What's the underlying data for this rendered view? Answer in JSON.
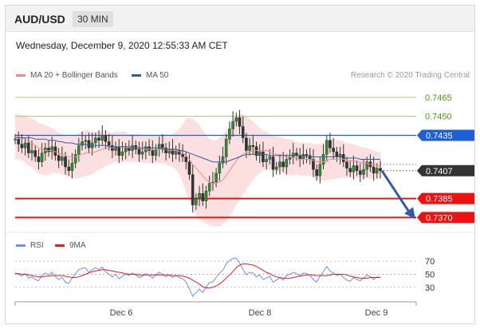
{
  "header": {
    "symbol": "AUD/USD",
    "timeframe": "30 MIN"
  },
  "datetime": "Wednesday, December 9, 2020 12:55:33 AM CET",
  "credit": "Research © 2020 Trading Central",
  "legend": {
    "main": [
      {
        "label": "MA 20 + Bollinger Bands",
        "color": "#f08a8a"
      },
      {
        "label": "MA 50",
        "color": "#2e5da8"
      }
    ],
    "rsi": [
      {
        "label": "RSI",
        "color": "#6f8fe0"
      },
      {
        "label": "9MA",
        "color": "#e02020"
      }
    ]
  },
  "chart_data": [
    {
      "type": "line",
      "price_ylim": [
        0.7362,
        0.7477
      ],
      "x_ticks": [
        "Dec 6",
        "Dec 8",
        "Dec 9"
      ],
      "levels": [
        {
          "value": 0.7465,
          "label": "0.7465",
          "kind": "resistance",
          "color": "#9ccf6a",
          "text_color": "#4a9a1a"
        },
        {
          "value": 0.745,
          "label": "0.7450",
          "kind": "resistance",
          "color": "#9ccf6a",
          "text_color": "#4a9a1a"
        },
        {
          "value": 0.7435,
          "label": "0.7435",
          "kind": "pivot",
          "color": "#1f5fd6",
          "text_color": "#ffffff"
        },
        {
          "value": 0.7407,
          "label": "0.7407",
          "kind": "last",
          "color": "#333333",
          "text_color": "#ffffff"
        },
        {
          "value": 0.7385,
          "label": "0.7385",
          "kind": "support",
          "color": "#ee1111",
          "text_color": "#ffffff"
        },
        {
          "value": 0.737,
          "label": "0.7370",
          "kind": "support",
          "color": "#ee1111",
          "text_color": "#ffffff"
        }
      ],
      "price_series": [
        0.7432,
        0.7428,
        0.7425,
        0.7429,
        0.7421,
        0.7423,
        0.7418,
        0.7414,
        0.7421,
        0.7425,
        0.7422,
        0.7426,
        0.7419,
        0.7415,
        0.7418,
        0.741,
        0.7407,
        0.7413,
        0.742,
        0.7427,
        0.743,
        0.7431,
        0.7425,
        0.7429,
        0.7433,
        0.7431,
        0.7435,
        0.743,
        0.7427,
        0.7423,
        0.7426,
        0.7419,
        0.7422,
        0.7425,
        0.7423,
        0.7427,
        0.7424,
        0.742,
        0.7422,
        0.7426,
        0.7423,
        0.7419,
        0.7424,
        0.7428,
        0.7425,
        0.7421,
        0.7424,
        0.742,
        0.7423,
        0.742,
        0.7418,
        0.7414,
        0.7404,
        0.738,
        0.7385,
        0.7389,
        0.7383,
        0.7391,
        0.7397,
        0.7398,
        0.7405,
        0.7413,
        0.7418,
        0.7432,
        0.744,
        0.7446,
        0.7449,
        0.7442,
        0.7433,
        0.7423,
        0.7427,
        0.7426,
        0.7419,
        0.7422,
        0.7414,
        0.7416,
        0.7418,
        0.7408,
        0.741,
        0.7414,
        0.741,
        0.7416,
        0.7418,
        0.7421,
        0.7419,
        0.7416,
        0.742,
        0.7419,
        0.7416,
        0.7408,
        0.7403,
        0.7412,
        0.742,
        0.7431,
        0.7425,
        0.7422,
        0.7418,
        0.742,
        0.7414,
        0.7409,
        0.7406,
        0.7411,
        0.7407,
        0.7404,
        0.7408,
        0.7414,
        0.741,
        0.7405,
        0.7409,
        0.7407
      ],
      "ma20": [
        0.7434,
        0.7434,
        0.7433,
        0.7432,
        0.743,
        0.7429,
        0.7427,
        0.7425,
        0.7424,
        0.7423,
        0.7423,
        0.7423,
        0.7422,
        0.7421,
        0.742,
        0.7419,
        0.7418,
        0.7418,
        0.7418,
        0.7419,
        0.742,
        0.7421,
        0.7421,
        0.7421,
        0.7422,
        0.7423,
        0.7424,
        0.7425,
        0.7425,
        0.7425,
        0.7426,
        0.7426,
        0.7426,
        0.7426,
        0.7425,
        0.7425,
        0.7425,
        0.7425,
        0.7424,
        0.7424,
        0.7424,
        0.7424,
        0.7424,
        0.7424,
        0.7424,
        0.7424,
        0.7423,
        0.7423,
        0.7423,
        0.7422,
        0.7421,
        0.7419,
        0.7416,
        0.7412,
        0.7409,
        0.7406,
        0.7403,
        0.74,
        0.7398,
        0.7397,
        0.7397,
        0.7398,
        0.74,
        0.7403,
        0.7407,
        0.7411,
        0.7415,
        0.7418,
        0.742,
        0.7421,
        0.7422,
        0.7423,
        0.7423,
        0.7423,
        0.7423,
        0.7423,
        0.7422,
        0.7421,
        0.742,
        0.742,
        0.7419,
        0.7418,
        0.7418,
        0.7417,
        0.7417,
        0.7416,
        0.7416,
        0.7416,
        0.7416,
        0.7415,
        0.7414,
        0.7414,
        0.7414,
        0.7415,
        0.7416,
        0.7416,
        0.7416,
        0.7416,
        0.7416,
        0.7415,
        0.7415,
        0.7415,
        0.7414,
        0.7414,
        0.7413,
        0.7413,
        0.7412,
        0.7412,
        0.7411,
        0.7411
      ],
      "ma50": [
        0.7433,
        0.7433,
        0.7433,
        0.7433,
        0.7433,
        0.7433,
        0.7432,
        0.7432,
        0.7432,
        0.7432,
        0.7431,
        0.7431,
        0.7431,
        0.743,
        0.743,
        0.7429,
        0.7429,
        0.7429,
        0.7428,
        0.7428,
        0.7428,
        0.7428,
        0.7427,
        0.7427,
        0.7427,
        0.7427,
        0.7427,
        0.7427,
        0.7426,
        0.7426,
        0.7426,
        0.7426,
        0.7426,
        0.7426,
        0.7426,
        0.7425,
        0.7425,
        0.7425,
        0.7425,
        0.7425,
        0.7425,
        0.7425,
        0.7425,
        0.7425,
        0.7424,
        0.7424,
        0.7424,
        0.7424,
        0.7424,
        0.7423,
        0.7423,
        0.7422,
        0.7421,
        0.742,
        0.7419,
        0.7418,
        0.7417,
        0.7416,
        0.7415,
        0.7414,
        0.7414,
        0.7414,
        0.7414,
        0.7414,
        0.7415,
        0.7416,
        0.7417,
        0.7418,
        0.7419,
        0.742,
        0.742,
        0.742,
        0.742,
        0.742,
        0.742,
        0.742,
        0.7419,
        0.7419,
        0.7419,
        0.7419,
        0.7419,
        0.7419,
        0.7419,
        0.7419,
        0.7419,
        0.7419,
        0.7419,
        0.7418,
        0.7418,
        0.7418,
        0.7418,
        0.7418,
        0.7418,
        0.7418,
        0.7418,
        0.7418,
        0.7418,
        0.7418,
        0.7417,
        0.7417,
        0.7417,
        0.7417,
        0.7417,
        0.7416,
        0.7416,
        0.7416,
        0.7416,
        0.7416,
        0.7416,
        0.7416
      ],
      "bb_width": [
        0.0018,
        0.0018,
        0.0018,
        0.0019,
        0.0019,
        0.0019,
        0.002,
        0.002,
        0.002,
        0.002,
        0.0019,
        0.0018,
        0.0017,
        0.0016,
        0.0016,
        0.0016,
        0.0016,
        0.0017,
        0.0017,
        0.0018,
        0.0018,
        0.0018,
        0.0018,
        0.0017,
        0.0016,
        0.0015,
        0.0015,
        0.0014,
        0.0013,
        0.0012,
        0.0012,
        0.0012,
        0.0012,
        0.0012,
        0.0011,
        0.0011,
        0.0011,
        0.0011,
        0.0011,
        0.0011,
        0.0011,
        0.0011,
        0.0011,
        0.0011,
        0.0011,
        0.0012,
        0.0012,
        0.0013,
        0.0015,
        0.0018,
        0.0023,
        0.0029,
        0.0033,
        0.0036,
        0.0037,
        0.0037,
        0.0036,
        0.0035,
        0.0034,
        0.0034,
        0.0034,
        0.0035,
        0.0035,
        0.0036,
        0.0036,
        0.0036,
        0.0035,
        0.0034,
        0.0032,
        0.0029,
        0.0026,
        0.0023,
        0.002,
        0.0018,
        0.0016,
        0.0015,
        0.0014,
        0.0014,
        0.0014,
        0.0014,
        0.0014,
        0.0014,
        0.0014,
        0.0014,
        0.0013,
        0.0013,
        0.0013,
        0.0013,
        0.0013,
        0.0013,
        0.0014,
        0.0014,
        0.0015,
        0.0016,
        0.0016,
        0.0016,
        0.0015,
        0.0015,
        0.0014,
        0.0014,
        0.0013,
        0.0013,
        0.0013,
        0.0012,
        0.0012,
        0.0012,
        0.0012,
        0.0011,
        0.0011,
        0.0011
      ],
      "forecast": {
        "from": 0.7407,
        "to": 0.737
      }
    },
    {
      "type": "line",
      "ylim": [
        15,
        80
      ],
      "y_ticks": [
        "70",
        "50",
        "30"
      ],
      "series": [
        {
          "name": "RSI",
          "values": [
            52,
            50,
            47,
            51,
            44,
            46,
            42,
            40,
            48,
            52,
            49,
            53,
            46,
            42,
            45,
            38,
            36,
            44,
            51,
            57,
            59,
            60,
            53,
            57,
            60,
            57,
            61,
            54,
            50,
            46,
            50,
            43,
            47,
            50,
            48,
            52,
            49,
            45,
            47,
            51,
            48,
            44,
            49,
            53,
            50,
            46,
            49,
            45,
            48,
            45,
            43,
            38,
            28,
            16,
            22,
            27,
            22,
            31,
            37,
            38,
            45,
            52,
            56,
            66,
            71,
            74,
            75,
            67,
            58,
            49,
            53,
            52,
            46,
            49,
            42,
            44,
            47,
            38,
            41,
            45,
            41,
            48,
            50,
            53,
            51,
            48,
            52,
            51,
            48,
            42,
            38,
            47,
            54,
            62,
            55,
            52,
            48,
            50,
            45,
            41,
            39,
            45,
            42,
            40,
            44,
            49,
            46,
            42,
            46,
            45
          ]
        },
        {
          "name": "9MA",
          "values": [
            51,
            51,
            50,
            50,
            49,
            48,
            47,
            46,
            46,
            47,
            47,
            48,
            48,
            48,
            48,
            47,
            46,
            45,
            45,
            46,
            48,
            50,
            52,
            54,
            55,
            56,
            57,
            57,
            56,
            55,
            54,
            53,
            52,
            51,
            50,
            50,
            50,
            49,
            49,
            49,
            49,
            49,
            49,
            49,
            49,
            49,
            49,
            48,
            48,
            48,
            47,
            46,
            44,
            41,
            38,
            35,
            31,
            29,
            29,
            30,
            32,
            35,
            39,
            44,
            49,
            54,
            60,
            64,
            66,
            66,
            65,
            64,
            62,
            59,
            56,
            53,
            51,
            48,
            46,
            45,
            44,
            44,
            44,
            45,
            46,
            47,
            48,
            49,
            49,
            49,
            48,
            48,
            48,
            48,
            49,
            50,
            50,
            50,
            50,
            49,
            47,
            46,
            45,
            44,
            44,
            44,
            45,
            45,
            45,
            45
          ]
        }
      ]
    }
  ]
}
